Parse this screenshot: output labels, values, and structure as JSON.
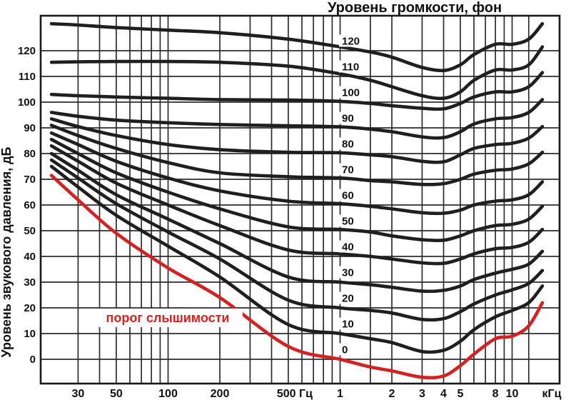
{
  "title": "Уровень громкости, фон",
  "axes": {
    "y_label": "Уровень звукового давления, дБ"
  },
  "annotation": {
    "text": "порог слышимости",
    "color": "#d8231f"
  },
  "colors": {
    "background": "#ffffff",
    "curve": "#1f1f1f",
    "threshold_curve": "#d32221",
    "grid": "#2d2d2d",
    "border": "#1a1a1a",
    "text": "#111111"
  },
  "chart_data": {
    "type": "line",
    "title": "Уровень громкости, фон",
    "ylabel": "Уровень звукового давления, дБ",
    "x_scale": "log",
    "x_range_hz": [
      20,
      20000
    ],
    "ylim": [
      -9,
      133
    ],
    "grid": true,
    "legend_position": "labels-on-curves-at-1kHz",
    "x_hz": [
      21,
      30,
      50,
      100,
      200,
      500,
      1000,
      1500,
      2000,
      3000,
      4000,
      5000,
      6000,
      8000,
      10000,
      12500,
      15000
    ],
    "grid_hz": [
      30,
      40,
      50,
      60,
      70,
      80,
      90,
      100,
      200,
      300,
      400,
      500,
      600,
      700,
      800,
      900,
      1000,
      1500,
      2000,
      3000,
      4000,
      5000,
      6000,
      7000,
      8000,
      9000,
      10000,
      12500
    ],
    "y_ticks_db": [
      0,
      10,
      20,
      30,
      40,
      50,
      60,
      70,
      80,
      90,
      100,
      110,
      120
    ],
    "x_ticks": [
      {
        "hz": 30,
        "label": "30"
      },
      {
        "hz": 50,
        "label": "50"
      },
      {
        "hz": 100,
        "label": "100"
      },
      {
        "hz": 200,
        "label": "200"
      },
      {
        "hz": 500,
        "label": "500 Гц",
        "dx": 9
      },
      {
        "hz": 1000,
        "label": "1"
      },
      {
        "hz": 2000,
        "label": "2"
      },
      {
        "hz": 3000,
        "label": "3"
      },
      {
        "hz": 4000,
        "label": "4"
      },
      {
        "hz": 5000,
        "label": "5"
      },
      {
        "hz": 8000,
        "label": "8"
      },
      {
        "hz": 10000,
        "label": "10"
      },
      {
        "hz": 17000,
        "label": "кГц"
      }
    ],
    "series": [
      {
        "label": "0",
        "phon": 0,
        "role": "threshold-of-hearing",
        "color": "#d32221",
        "spl_db": [
          71.5,
          62,
          49,
          35.5,
          24,
          5,
          0,
          -3,
          -4.5,
          -7,
          -6.5,
          -2.5,
          2,
          8,
          9,
          13,
          22
        ]
      },
      {
        "label": "10",
        "phon": 10,
        "role": "equal-loudness",
        "color": "#1f1f1f",
        "spl_db": [
          75,
          67,
          56,
          44,
          32,
          13.5,
          10,
          8,
          6.5,
          3,
          3.5,
          7,
          11.5,
          16.5,
          19,
          22,
          28.5
        ]
      },
      {
        "label": "20",
        "phon": 20,
        "role": "equal-loudness",
        "color": "#1f1f1f",
        "spl_db": [
          77.5,
          70.5,
          60.5,
          49.5,
          39,
          23,
          20,
          19,
          18,
          15.5,
          15.8,
          18.5,
          21.5,
          25,
          27,
          29.5,
          34.5
        ]
      },
      {
        "label": "30",
        "phon": 30,
        "role": "equal-loudness",
        "color": "#1f1f1f",
        "spl_db": [
          80,
          73.5,
          64,
          54.5,
          45,
          32,
          30,
          29,
          28,
          26.5,
          26.8,
          28.5,
          31,
          33.5,
          35,
          37,
          42
        ]
      },
      {
        "label": "40",
        "phon": 40,
        "role": "equal-loudness",
        "color": "#1f1f1f",
        "spl_db": [
          83,
          77,
          68.5,
          60,
          52,
          42.5,
          41,
          40,
          39,
          37.5,
          37.3,
          39,
          41,
          43,
          43.5,
          45.5,
          50.5
        ]
      },
      {
        "label": "50",
        "phon": 50,
        "role": "equal-loudness",
        "color": "#1f1f1f",
        "spl_db": [
          85.5,
          80,
          72.5,
          65,
          58.5,
          51.5,
          50.5,
          49.5,
          48,
          46.5,
          46.3,
          48,
          50,
          52,
          52.5,
          54.5,
          59.5
        ]
      },
      {
        "label": "60",
        "phon": 60,
        "role": "equal-loudness",
        "color": "#1f1f1f",
        "spl_db": [
          88,
          83.5,
          77,
          70.5,
          65.5,
          61.5,
          60.5,
          59.5,
          58.5,
          57,
          56.8,
          58,
          60,
          61.5,
          62,
          64,
          69
        ]
      },
      {
        "label": "70",
        "phon": 70,
        "role": "equal-loudness",
        "color": "#1f1f1f",
        "spl_db": [
          91,
          87,
          82,
          76.5,
          72.5,
          71,
          70.5,
          69.5,
          69,
          68,
          68.3,
          70,
          72,
          73.5,
          74,
          76,
          80.5
        ]
      },
      {
        "label": "80",
        "phon": 80,
        "role": "equal-loudness",
        "color": "#1f1f1f",
        "spl_db": [
          93.5,
          90.5,
          87,
          83.5,
          81.5,
          80.5,
          80.3,
          79.5,
          78.8,
          77,
          76.8,
          79.5,
          82,
          83.5,
          84,
          86,
          90.5
        ]
      },
      {
        "label": "90",
        "phon": 90,
        "role": "equal-loudness",
        "color": "#1f1f1f",
        "spl_db": [
          96,
          94.5,
          93,
          92,
          91.3,
          90.8,
          90.4,
          89.5,
          88.5,
          86.5,
          86.2,
          88.5,
          91.5,
          93.5,
          94,
          96,
          101
        ]
      },
      {
        "label": "100",
        "phon": 100,
        "role": "equal-loudness",
        "color": "#1f1f1f",
        "spl_db": [
          103,
          102.5,
          102,
          101.5,
          101,
          100.8,
          100.3,
          99.5,
          98.6,
          97.6,
          97.4,
          99.5,
          102,
          104,
          104,
          106,
          111.5
        ]
      },
      {
        "label": "110",
        "phon": 110,
        "role": "equal-loudness",
        "color": "#1f1f1f",
        "spl_db": [
          115.5,
          115.7,
          115.8,
          115.8,
          115.5,
          114,
          111,
          108.5,
          106,
          102.5,
          101.5,
          104,
          108.5,
          112.5,
          112.5,
          114.5,
          121.5
        ]
      },
      {
        "label": "120",
        "phon": 120,
        "role": "equal-loudness",
        "color": "#1f1f1f",
        "spl_db": [
          130.5,
          130,
          129,
          128,
          127,
          124.5,
          121.5,
          119.5,
          117.5,
          113.5,
          112.3,
          114.5,
          118.5,
          122.5,
          122.5,
          124.5,
          130.5
        ]
      }
    ],
    "annotation": "порог слышимости"
  }
}
